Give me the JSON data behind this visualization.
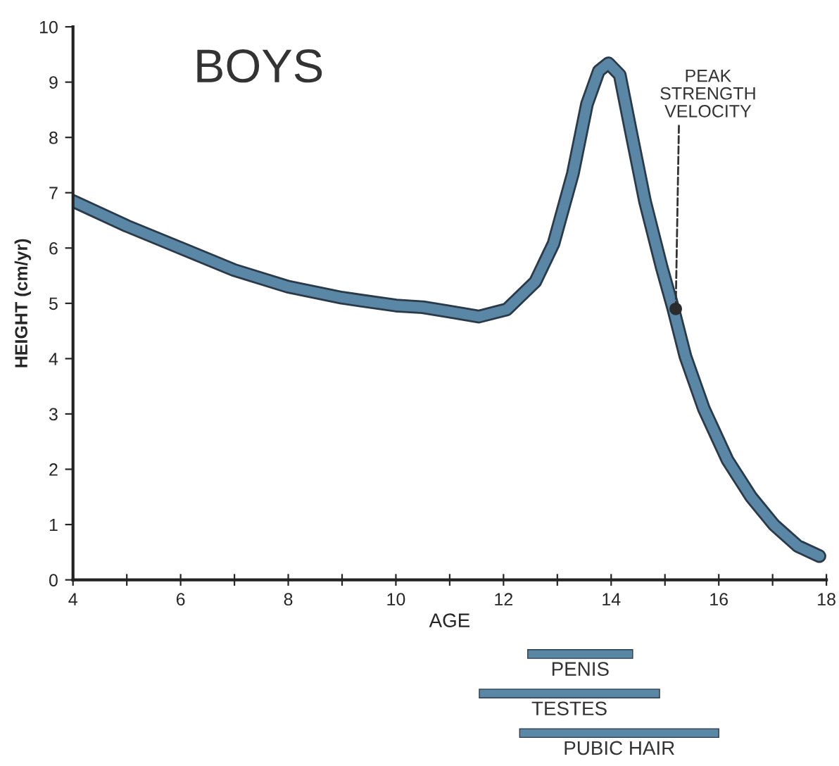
{
  "chart_data": [
    {
      "type": "line",
      "title": "BOYS",
      "xlabel": "AGE",
      "ylabel": "HEIGHT (cm/yr)",
      "series": [
        {
          "type": "line",
          "color": "#5b87a6",
          "x": [
            4,
            5,
            6,
            7,
            8,
            9,
            10,
            10.5,
            11,
            11.54,
            12.06,
            12.59,
            12.93,
            13.29,
            13.55,
            13.77,
            13.95,
            14.16,
            14.37,
            14.63,
            14.94,
            15.15,
            15.38,
            15.72,
            16.16,
            16.6,
            17.03,
            17.47,
            17.87
          ],
          "values": [
            6.85,
            6.4,
            6.0,
            5.6,
            5.3,
            5.1,
            4.96,
            4.93,
            4.85,
            4.76,
            4.89,
            5.39,
            6.08,
            7.35,
            8.6,
            9.2,
            9.34,
            9.13,
            8.1,
            6.84,
            5.65,
            4.92,
            4.04,
            3.1,
            2.17,
            1.5,
            0.99,
            0.61,
            0.43
          ]
        },
        {
          "type": "scatter",
          "color": "#2b2b2b",
          "x": [
            15.2
          ],
          "values": [
            4.9
          ]
        }
      ],
      "annotations": [
        {
          "text": "PEAK\nSTRENGTH\nVELOCITY",
          "x": 15.2,
          "y": 4.9
        }
      ],
      "xlim": [
        4,
        18
      ],
      "ylim": [
        0,
        10
      ],
      "xticks": [
        4,
        {
          "value": 5,
          "label": null
        },
        6,
        {
          "value": 7,
          "label": null
        },
        8,
        {
          "value": 9,
          "label": null
        },
        10,
        {
          "value": 11,
          "label": null
        },
        12,
        {
          "value": 13,
          "label": null
        },
        14,
        {
          "value": 15,
          "label": null
        },
        16,
        {
          "value": 17,
          "label": null
        },
        18
      ],
      "yticks": [
        0,
        1,
        2,
        3,
        4,
        5,
        6,
        7,
        8,
        9,
        10
      ],
      "grid": false,
      "legend": false
    },
    {
      "type": "bar",
      "orientation": "horizontal",
      "categories": [
        "PENIS",
        "TESTES",
        "PUBIC HAIR"
      ],
      "base": [
        12.45,
        11.55,
        12.3
      ],
      "values": [
        1.95,
        3.35,
        3.7
      ],
      "color": "#5b87a6",
      "xlim": [
        4,
        18
      ],
      "tick_labels": false
    }
  ]
}
